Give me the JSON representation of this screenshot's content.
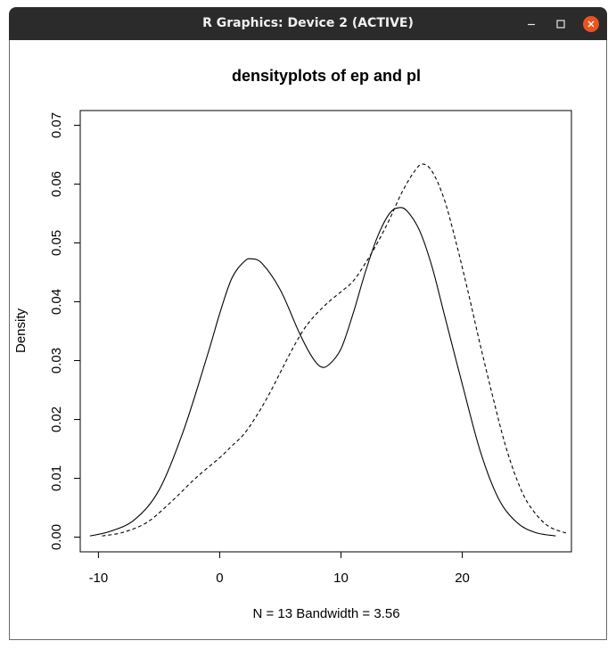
{
  "window": {
    "title": "R Graphics: Device 2 (ACTIVE)",
    "buttons": {
      "minimize_icon": "minimize-icon",
      "maximize_icon": "maximize-icon",
      "close_icon": "close-icon",
      "close_color": "#e95420"
    }
  },
  "chart_data": {
    "type": "line",
    "title": "densityplots of ep and pl",
    "xlabel": "N = 13   Bandwidth = 3.56",
    "ylabel": "Density",
    "xlim": [
      -11.5,
      29
    ],
    "ylim": [
      -0.0025,
      0.0725
    ],
    "xticks": [
      -10,
      0,
      10,
      20
    ],
    "xtick_labels": [
      "-10",
      "0",
      "10",
      "20"
    ],
    "yticks": [
      0.0,
      0.01,
      0.02,
      0.03,
      0.04,
      0.05,
      0.06,
      0.07
    ],
    "ytick_labels": [
      "0.00",
      "0.01",
      "0.02",
      "0.03",
      "0.04",
      "0.05",
      "0.06",
      "0.07"
    ],
    "grid": false,
    "series": [
      {
        "style": "solid",
        "x": [
          -10.7,
          -9,
          -7,
          -5,
          -3,
          -1,
          0,
          1,
          2,
          2.6,
          3.5,
          5,
          6.5,
          7.5,
          8.3,
          9,
          10,
          11,
          12,
          13,
          14,
          14.8,
          15.5,
          16.5,
          17.5,
          18.5,
          20,
          21.5,
          23,
          24.5,
          26,
          27.7
        ],
        "y": [
          0.0002,
          0.001,
          0.003,
          0.008,
          0.018,
          0.031,
          0.038,
          0.044,
          0.0468,
          0.0473,
          0.0465,
          0.042,
          0.035,
          0.031,
          0.029,
          0.0293,
          0.032,
          0.038,
          0.045,
          0.051,
          0.055,
          0.056,
          0.0553,
          0.052,
          0.046,
          0.038,
          0.026,
          0.0145,
          0.0065,
          0.0025,
          0.0008,
          0.0002
        ]
      },
      {
        "style": "dashed",
        "x": [
          -9.7,
          -8,
          -6,
          -4,
          -2,
          0,
          1,
          2,
          3,
          4,
          5,
          6,
          7,
          8,
          9,
          10,
          11,
          12,
          13,
          14,
          15,
          16,
          16.7,
          17.5,
          18.5,
          19.5,
          20.5,
          21.5,
          22.5,
          23.5,
          24.5,
          25.5,
          27,
          28.7
        ],
        "y": [
          0.0002,
          0.0008,
          0.0025,
          0.006,
          0.01,
          0.0135,
          0.0155,
          0.0175,
          0.0205,
          0.024,
          0.028,
          0.032,
          0.0355,
          0.038,
          0.04,
          0.0417,
          0.0435,
          0.0465,
          0.05,
          0.054,
          0.0585,
          0.062,
          0.0634,
          0.0622,
          0.0575,
          0.05,
          0.0415,
          0.0325,
          0.024,
          0.016,
          0.0098,
          0.0055,
          0.002,
          0.0006
        ]
      }
    ]
  }
}
